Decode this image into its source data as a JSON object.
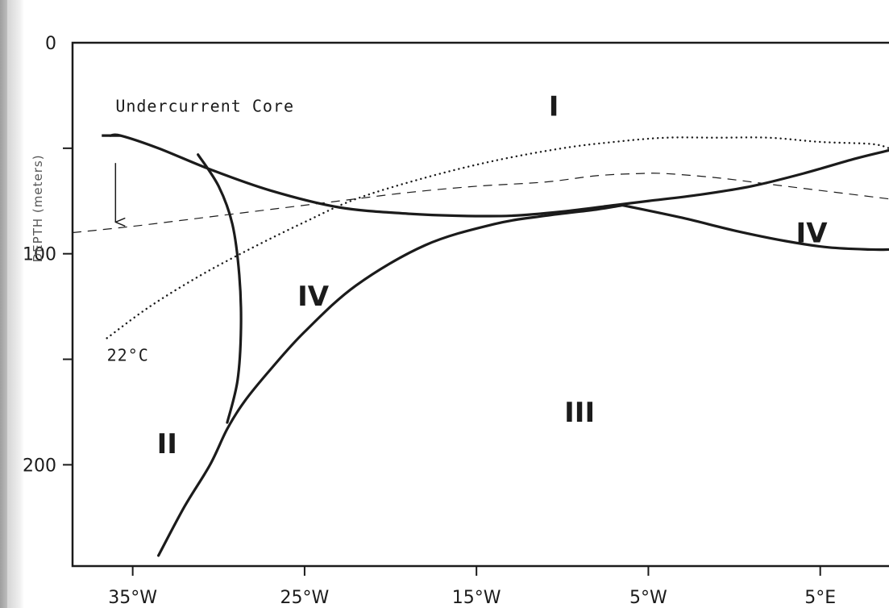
{
  "chart_data": {
    "type": "line",
    "title": "",
    "xlabel": "",
    "ylabel": "DEPTH (meters)",
    "x_tick_labels": [
      "35°W",
      "25°W",
      "15°W",
      "5°W",
      "5°E"
    ],
    "x_tick_values": [
      -35,
      -25,
      -15,
      -5,
      5
    ],
    "y_tick_labels": [
      "0",
      "100",
      "200"
    ],
    "y_tick_values": [
      0,
      100,
      200
    ],
    "xlim": [
      -38.5,
      9
    ],
    "ylim": [
      0,
      248
    ],
    "y_inverted": true,
    "grid": false,
    "region_labels": [
      {
        "text": "I",
        "x": -10.5,
        "y": 30
      },
      {
        "text": "II",
        "x": -33,
        "y": 190
      },
      {
        "text": "III",
        "x": -9,
        "y": 175
      },
      {
        "text": "IV",
        "x": -24.5,
        "y": 120
      },
      {
        "text": "IV",
        "x": 4.5,
        "y": 90
      }
    ],
    "annotations": [
      {
        "text": "Undercurrent Core",
        "x": -36,
        "y": 30
      },
      {
        "text": "22°C",
        "x": -36.5,
        "y": 148
      }
    ],
    "series": [
      {
        "style": "solid",
        "x": [
          -36.3,
          -35.7,
          -33.5,
          -30.5,
          -27,
          -23,
          -19,
          -16,
          -13,
          -10,
          -7,
          -5,
          -2,
          1,
          4,
          7,
          9
        ],
        "y": [
          44,
          44,
          50,
          60,
          70,
          78,
          81,
          82,
          82,
          80,
          77,
          75,
          72,
          68,
          62,
          55,
          51
        ]
      },
      {
        "style": "solid",
        "x": [
          -31.2,
          -30,
          -29.2,
          -28.8,
          -28.7,
          -28.9,
          -29.5
        ],
        "y": [
          53,
          68,
          86,
          110,
          135,
          160,
          180
        ]
      },
      {
        "style": "solid",
        "x": [
          -33.5,
          -32,
          -30.5,
          -29.5,
          -28.5,
          -27,
          -25,
          -22,
          -18,
          -14,
          -11,
          -8,
          -6.5
        ],
        "y": [
          243,
          220,
          200,
          183,
          170,
          155,
          137,
          115,
          96,
          86,
          82,
          79,
          77
        ]
      },
      {
        "style": "solid",
        "x": [
          -6.5,
          -3,
          0,
          3,
          5.5,
          8,
          9
        ],
        "y": [
          77,
          83,
          89,
          94,
          97,
          98,
          98
        ]
      },
      {
        "style": "dotted",
        "x": [
          -36.5,
          -34,
          -31,
          -28,
          -25,
          -22,
          -18,
          -14,
          -10,
          -7,
          -4,
          -1,
          2,
          5,
          8,
          9
        ],
        "y": [
          140,
          125,
          110,
          97,
          85,
          74,
          64,
          56,
          50,
          47,
          45,
          45,
          45,
          47,
          48,
          50
        ]
      },
      {
        "style": "dashed",
        "x": [
          -38.5,
          -35,
          -31,
          -27,
          -23,
          -19,
          -15,
          -11,
          -8,
          -5.5,
          -4,
          -1,
          2,
          5,
          8,
          9
        ],
        "y": [
          90,
          87,
          83,
          79,
          75,
          71,
          68,
          66,
          63,
          62,
          62,
          64,
          67,
          70,
          73,
          74
        ]
      },
      {
        "style": "arrow",
        "x": [
          -36,
          -36
        ],
        "y": [
          57,
          85
        ]
      }
    ]
  }
}
